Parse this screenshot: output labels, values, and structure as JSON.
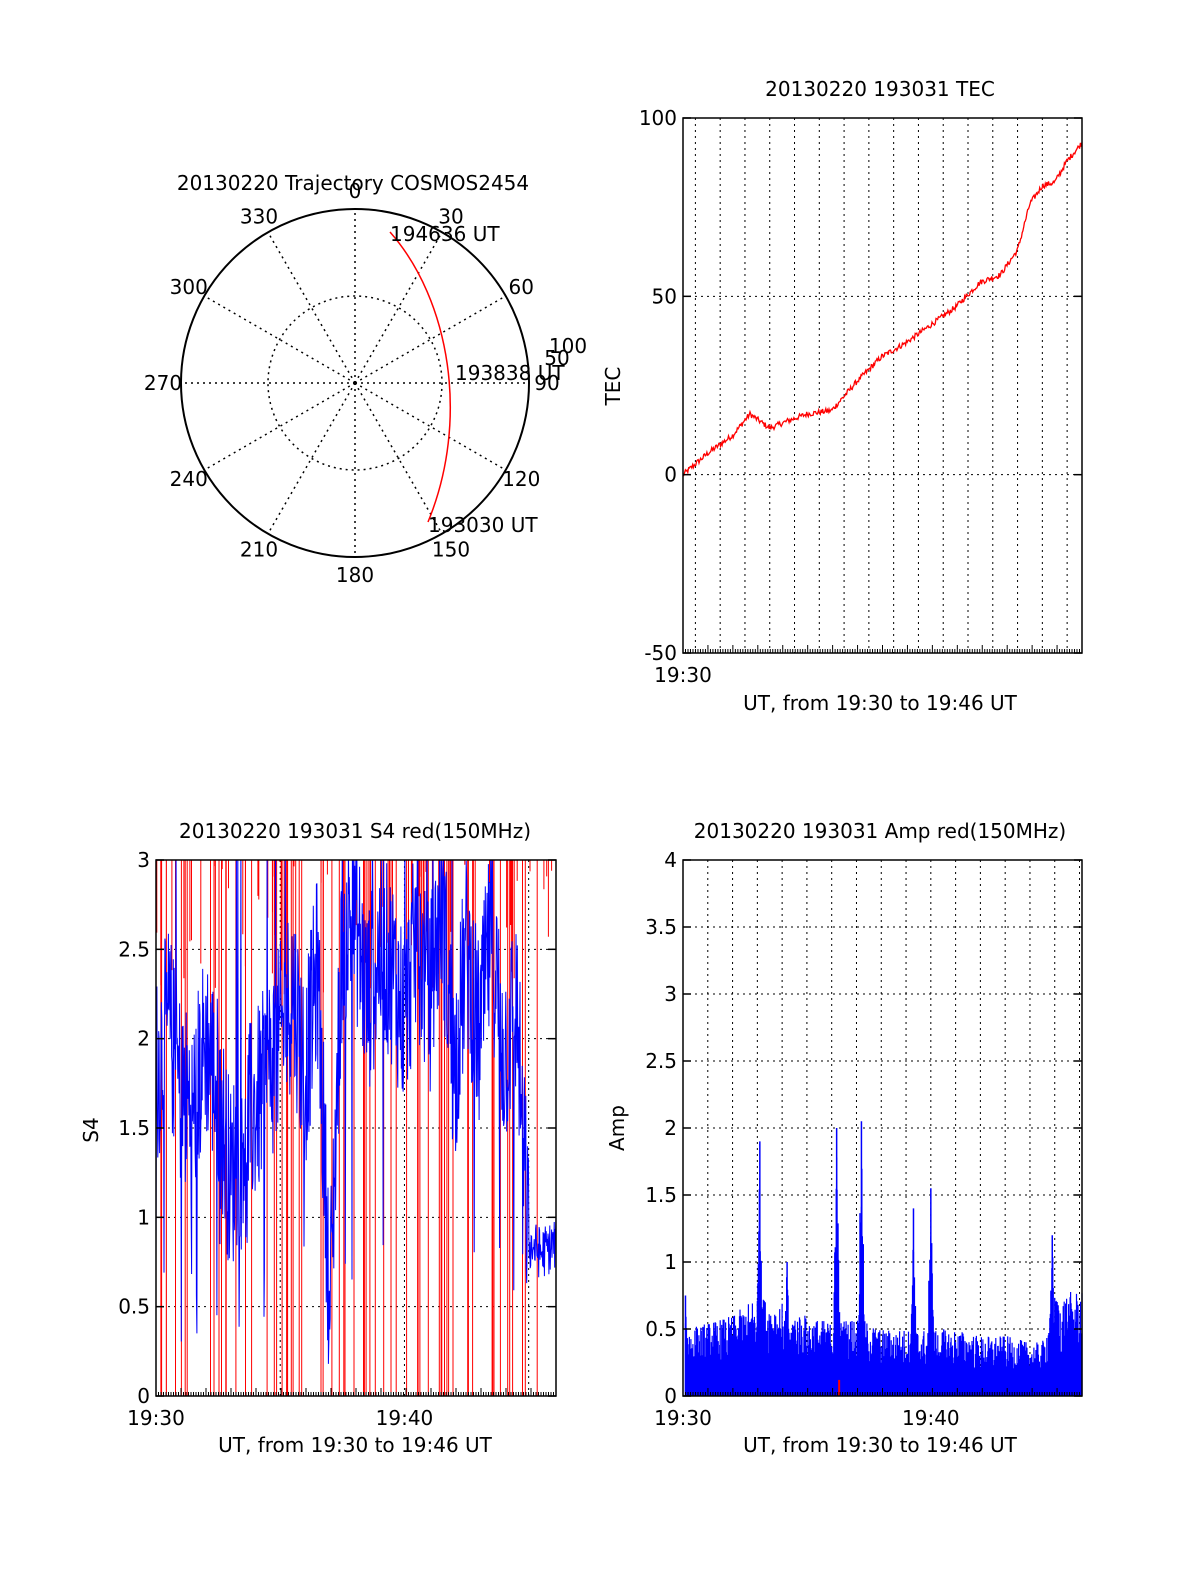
{
  "chart_data": [
    {
      "type": "polar",
      "title": "20130220 Trajectory COSMOS2454",
      "angle_labels": [
        "0",
        "30",
        "60",
        "90",
        "120",
        "150",
        "180",
        "210",
        "240",
        "270",
        "300",
        "330"
      ],
      "radius_labels": [
        "50",
        "100"
      ],
      "rmax": 100,
      "grid": true,
      "series": [
        {
          "color": "#ff0000",
          "points": [
            {
              "az": 14,
              "el": 90
            },
            {
              "az": 32,
              "el": 72
            },
            {
              "az": 55,
              "el": 57
            },
            {
              "az": 78,
              "el": 52
            },
            {
              "az": 100,
              "el": 54
            },
            {
              "az": 125,
              "el": 62
            },
            {
              "az": 147,
              "el": 78
            }
          ]
        }
      ],
      "annotations": [
        {
          "text": "194636 UT",
          "az": 14,
          "el": 90
        },
        {
          "text": "193838 UT",
          "az": 79,
          "el": 52
        },
        {
          "text": "193030 UT",
          "az": 147,
          "el": 78
        }
      ]
    },
    {
      "type": "line",
      "title": "20130220 193031 TEC",
      "xlabel": "UT, from 19:30 to 19:46 UT",
      "ylabel": "TEC",
      "xlim": [
        0,
        16.1
      ],
      "ylim": [
        -50,
        100
      ],
      "xtick_labels": [
        {
          "x": 0,
          "label": "19:30"
        }
      ],
      "yticks": [
        -50,
        0,
        50,
        100
      ],
      "xgrid": [
        0.5,
        1.5,
        2.5,
        3.5,
        4.5,
        5.5,
        6.5,
        7.5,
        8.5,
        9.5,
        10.5,
        11.5,
        12.5,
        13.5,
        14.5,
        15.5
      ],
      "ygrid": [
        0,
        50
      ],
      "series": [
        {
          "color": "#ff0000",
          "x": [
            0,
            1,
            2,
            2.7,
            3.5,
            4.2,
            5,
            6,
            7,
            8,
            9,
            10,
            11,
            12,
            12.8,
            13.5,
            14,
            14.5,
            15,
            15.5,
            16.1
          ],
          "y": [
            0,
            6,
            11,
            17,
            13,
            15,
            17,
            18,
            26,
            33,
            37,
            42,
            47,
            54,
            56,
            63,
            76,
            81,
            82,
            88,
            93
          ]
        }
      ]
    },
    {
      "type": "line",
      "title": "20130220 193031 S4 red(150MHz)",
      "xlabel": "UT, from 19:30 to 19:46 UT",
      "ylabel": "S4",
      "xlim": [
        0,
        16.1
      ],
      "ylim": [
        0,
        3
      ],
      "xtick_labels": [
        {
          "x": 0,
          "label": "19:30"
        },
        {
          "x": 10,
          "label": "19:40"
        }
      ],
      "yticks": [
        0,
        0.5,
        1,
        1.5,
        2,
        2.5,
        3
      ],
      "ytick_labels": [
        "0",
        "0.5",
        "1",
        "1.5",
        "2",
        "2.5",
        "3"
      ],
      "xgrid": [
        5,
        10,
        15
      ],
      "ygrid": [
        0.5,
        1,
        1.5,
        2,
        2.5
      ],
      "series": [
        {
          "color": "#0000ff",
          "x": [
            0,
            0.5,
            1,
            1.5,
            2,
            2.5,
            3,
            3.5,
            4,
            4.5,
            5,
            5.5,
            6,
            6.5,
            7,
            7.5,
            8,
            8.5,
            9,
            9.5,
            10,
            10.5,
            11,
            11.5,
            12,
            12.5,
            13,
            13.5,
            14,
            14.5,
            15,
            15.5,
            16.1
          ],
          "y": [
            1.8,
            2.1,
            1.7,
            1.6,
            2.0,
            1.7,
            1.2,
            1.5,
            1.6,
            1.8,
            2.0,
            2.3,
            1.8,
            2.4,
            0.5,
            2.6,
            2.7,
            2.2,
            2.5,
            2.4,
            2.1,
            2.6,
            2.2,
            2.8,
            1.8,
            2.5,
            2.0,
            2.6,
            1.9,
            2.2,
            0.85,
            0.8,
            0.85
          ]
        }
      ]
    },
    {
      "type": "bar",
      "title": "20130220 193031 Amp red(150MHz)",
      "xlabel": "UT, from 19:30 to 19:46 UT",
      "ylabel": "Amp",
      "xlim": [
        0,
        16.1
      ],
      "ylim": [
        0,
        4
      ],
      "xtick_labels": [
        {
          "x": 0,
          "label": "19:30"
        },
        {
          "x": 10,
          "label": "19:40"
        }
      ],
      "yticks": [
        0,
        0.5,
        1,
        1.5,
        2,
        2.5,
        3,
        3.5,
        4
      ],
      "ytick_labels": [
        "0",
        "0.5",
        "1",
        "1.5",
        "2",
        "2.5",
        "3",
        "3.5",
        "4"
      ],
      "xgrid": [
        1,
        2,
        3,
        4,
        5,
        6,
        7,
        8,
        9,
        10,
        11,
        12,
        13,
        14,
        15,
        16
      ],
      "ygrid": [
        0.5,
        1,
        1.5,
        2,
        2.5,
        3,
        3.5
      ],
      "peaks": [
        {
          "x": 0.1,
          "y": 0.75
        },
        {
          "x": 3.1,
          "y": 1.9
        },
        {
          "x": 4.2,
          "y": 1.0
        },
        {
          "x": 6.2,
          "y": 2.0
        },
        {
          "x": 7.2,
          "y": 2.05
        },
        {
          "x": 9.3,
          "y": 1.4
        },
        {
          "x": 10.0,
          "y": 1.55
        },
        {
          "x": 14.9,
          "y": 1.2
        }
      ],
      "series": [
        {
          "color": "#0000ff",
          "x": [
            0,
            1,
            2,
            3,
            4,
            5,
            6,
            7,
            8,
            9,
            10,
            11,
            12,
            13,
            14,
            14.5,
            15,
            16.1
          ],
          "y": [
            0.5,
            0.55,
            0.6,
            0.75,
            0.7,
            0.6,
            0.55,
            0.6,
            0.5,
            0.5,
            0.5,
            0.5,
            0.45,
            0.45,
            0.4,
            0.4,
            0.75,
            0.8
          ]
        }
      ]
    }
  ]
}
